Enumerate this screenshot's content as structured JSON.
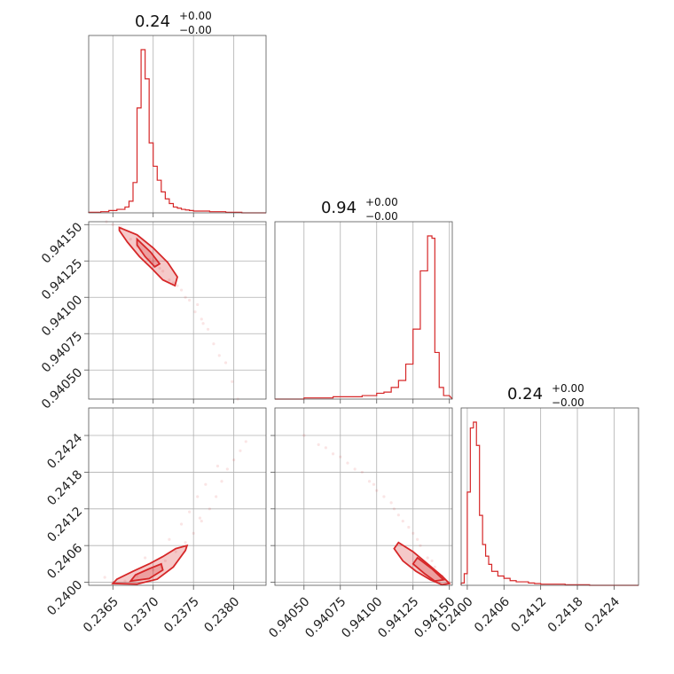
{
  "chart_data": {
    "type": "corner",
    "color": "#d62728",
    "panels": {
      "p1_hist": {
        "title": {
          "value": "0.24",
          "upper": "+0.00",
          "lower": "−0.00"
        },
        "xlim": [
          0.2362,
          0.2384
        ],
        "bins": [
          0.23635,
          0.23645,
          0.23655,
          0.23665,
          0.2367,
          0.23675,
          0.2368,
          0.23685,
          0.2369,
          0.23695,
          0.237,
          0.23705,
          0.2371,
          0.23715,
          0.2372,
          0.23725,
          0.2373,
          0.23735,
          0.2374,
          0.23745,
          0.2375,
          0.2376,
          0.2377,
          0.2378,
          0.2379,
          0.238,
          0.2381,
          0.2382
        ],
        "counts": [
          0.5,
          1,
          2,
          3,
          5,
          10,
          26,
          90,
          140,
          115,
          60,
          40,
          28,
          18,
          12,
          8,
          5,
          4,
          3,
          2.5,
          2,
          1.5,
          1.5,
          1,
          1,
          0.5,
          0.5,
          0
        ]
      },
      "p2_hist": {
        "title": {
          "value": "0.94",
          "upper": "+0.00",
          "lower": "−0.00"
        },
        "xlim": [
          0.9403,
          0.94152
        ],
        "bins": [
          0.9405,
          0.9406,
          0.9407,
          0.9408,
          0.9409,
          0.941,
          0.94105,
          0.9411,
          0.94115,
          0.9412,
          0.94125,
          0.9413,
          0.94135,
          0.94138,
          0.9414,
          0.94143,
          0.94146,
          0.9415
        ],
        "counts": [
          0,
          1,
          1,
          2,
          2,
          3,
          5,
          6,
          10,
          16,
          30,
          60,
          110,
          140,
          138,
          40,
          10,
          3
        ]
      },
      "p3_hist": {
        "title": {
          "value": "0.24",
          "upper": "+0.00",
          "lower": "−0.00"
        },
        "xlim": [
          0.2399,
          0.2428
        ],
        "bins": [
          0.23995,
          0.24,
          0.24005,
          0.2401,
          0.24015,
          0.2402,
          0.24025,
          0.2403,
          0.24035,
          0.2404,
          0.2405,
          0.2406,
          0.2407,
          0.2408,
          0.2409,
          0.241,
          0.2411,
          0.2412,
          0.2414,
          0.2416,
          0.2418,
          0.242,
          0.2422
        ],
        "counts": [
          2,
          10,
          80,
          135,
          140,
          120,
          60,
          35,
          25,
          18,
          12,
          8,
          6,
          4,
          3,
          3,
          2,
          1.5,
          1,
          1,
          0.5,
          0.5,
          0
        ]
      },
      "p21_scatter": {
        "xlim": [
          0.2362,
          0.2384
        ],
        "ylim": [
          0.9403,
          0.94152
        ],
        "points": [
          [
            0.2365,
            0.9415
          ],
          [
            0.2366,
            0.94148
          ],
          [
            0.23672,
            0.9414
          ],
          [
            0.23685,
            0.94132
          ],
          [
            0.237,
            0.94125
          ],
          [
            0.23712,
            0.94118
          ],
          [
            0.23725,
            0.9411
          ],
          [
            0.23735,
            0.94105
          ],
          [
            0.23745,
            0.94098
          ],
          [
            0.23752,
            0.9409
          ],
          [
            0.2376,
            0.94085
          ],
          [
            0.23768,
            0.94078
          ],
          [
            0.23775,
            0.94068
          ],
          [
            0.23782,
            0.9406
          ],
          [
            0.2379,
            0.94055
          ],
          [
            0.23798,
            0.94042
          ],
          [
            0.23805,
            0.9403
          ],
          [
            0.2372,
            0.94112
          ],
          [
            0.2374,
            0.941
          ],
          [
            0.23695,
            0.94126
          ],
          [
            0.2368,
            0.94135
          ],
          [
            0.2373,
            0.94108
          ],
          [
            0.23755,
            0.94095
          ],
          [
            0.23642,
            0.94152
          ],
          [
            0.23708,
            0.9412
          ],
          [
            0.23762,
            0.94082
          ]
        ],
        "contours": {
          "outer": [
            [
              0.23658,
              0.94148
            ],
            [
              0.2368,
              0.94143
            ],
            [
              0.237,
              0.94134
            ],
            [
              0.23718,
              0.94124
            ],
            [
              0.2373,
              0.94114
            ],
            [
              0.23727,
              0.94108
            ],
            [
              0.23712,
              0.94112
            ],
            [
              0.23698,
              0.9412
            ],
            [
              0.23683,
              0.94128
            ],
            [
              0.23668,
              0.94138
            ],
            [
              0.23658,
              0.94146
            ]
          ],
          "inner": [
            [
              0.2368,
              0.9414
            ],
            [
              0.23697,
              0.94131
            ],
            [
              0.23708,
              0.94123
            ],
            [
              0.23702,
              0.94121
            ],
            [
              0.2369,
              0.94128
            ],
            [
              0.2368,
              0.94136
            ]
          ]
        }
      },
      "p31_scatter": {
        "xlim": [
          0.2362,
          0.2384
        ],
        "ylim": [
          0.23995,
          0.24285
        ],
        "points": [
          [
            0.2365,
            0.24
          ],
          [
            0.23665,
            0.24002
          ],
          [
            0.2368,
            0.2401
          ],
          [
            0.237,
            0.2402
          ],
          [
            0.23715,
            0.24035
          ],
          [
            0.23728,
            0.2405
          ],
          [
            0.2374,
            0.24065
          ],
          [
            0.2375,
            0.2408
          ],
          [
            0.2376,
            0.241
          ],
          [
            0.2377,
            0.2412
          ],
          [
            0.23778,
            0.2414
          ],
          [
            0.23785,
            0.24165
          ],
          [
            0.23792,
            0.24185
          ],
          [
            0.238,
            0.242
          ],
          [
            0.23808,
            0.24215
          ],
          [
            0.23815,
            0.2423
          ],
          [
            0.23735,
            0.24095
          ],
          [
            0.23755,
            0.2414
          ],
          [
            0.2369,
            0.2404
          ],
          [
            0.23765,
            0.2416
          ],
          [
            0.2372,
            0.2407
          ],
          [
            0.2364,
            0.24008
          ],
          [
            0.23745,
            0.24115
          ],
          [
            0.2378,
            0.2419
          ],
          [
            0.2371,
            0.24025
          ],
          [
            0.23758,
            0.24105
          ]
        ],
        "contours": {
          "outer": [
            [
              0.2365,
              0.23998
            ],
            [
              0.2368,
              0.23997
            ],
            [
              0.23705,
              0.24005
            ],
            [
              0.23725,
              0.24025
            ],
            [
              0.2374,
              0.24052
            ],
            [
              0.23742,
              0.2406
            ],
            [
              0.23728,
              0.24055
            ],
            [
              0.23712,
              0.24042
            ],
            [
              0.23695,
              0.2403
            ],
            [
              0.23675,
              0.24018
            ],
            [
              0.23655,
              0.24005
            ]
          ],
          "inner": [
            [
              0.23672,
              0.24002
            ],
            [
              0.23695,
              0.24006
            ],
            [
              0.23712,
              0.2402
            ],
            [
              0.2371,
              0.2403
            ],
            [
              0.23695,
              0.24022
            ],
            [
              0.23678,
              0.24012
            ]
          ]
        }
      },
      "p32_scatter": {
        "xlim": [
          0.9403,
          0.94152
        ],
        "ylim": [
          0.23995,
          0.24285
        ],
        "points": [
          [
            0.9405,
            0.2424
          ],
          [
            0.9406,
            0.24225
          ],
          [
            0.9407,
            0.2421
          ],
          [
            0.9408,
            0.24195
          ],
          [
            0.9409,
            0.2418
          ],
          [
            0.94098,
            0.2416
          ],
          [
            0.94105,
            0.2414
          ],
          [
            0.94112,
            0.2412
          ],
          [
            0.94118,
            0.241
          ],
          [
            0.94125,
            0.2408
          ],
          [
            0.9413,
            0.2406
          ],
          [
            0.94135,
            0.2404
          ],
          [
            0.9414,
            0.24025
          ],
          [
            0.94145,
            0.2401
          ],
          [
            0.9415,
            0.24
          ],
          [
            0.941,
            0.2415
          ],
          [
            0.9411,
            0.2413
          ],
          [
            0.94122,
            0.2409
          ],
          [
            0.94085,
            0.24185
          ],
          [
            0.94128,
            0.2407
          ],
          [
            0.94065,
            0.2422
          ],
          [
            0.94138,
            0.24035
          ],
          [
            0.94095,
            0.24165
          ],
          [
            0.94115,
            0.2411
          ],
          [
            0.94142,
            0.24015
          ],
          [
            0.94075,
            0.24205
          ]
        ],
        "contours": {
          "outer": [
            [
              0.94115,
              0.24065
            ],
            [
              0.94125,
              0.2405
            ],
            [
              0.94135,
              0.2403
            ],
            [
              0.94145,
              0.2401
            ],
            [
              0.9415,
              0.23998
            ],
            [
              0.94145,
              0.23996
            ],
            [
              0.94137,
              0.24004
            ],
            [
              0.94127,
              0.24018
            ],
            [
              0.94118,
              0.24035
            ],
            [
              0.94112,
              0.24055
            ]
          ],
          "inner": [
            [
              0.94128,
              0.2404
            ],
            [
              0.94138,
              0.24022
            ],
            [
              0.94146,
              0.24004
            ],
            [
              0.9414,
              0.24002
            ],
            [
              0.94133,
              0.24014
            ],
            [
              0.94125,
              0.2403
            ]
          ]
        }
      }
    },
    "axes": {
      "x1": {
        "ticks": [
          0.2365,
          0.237,
          0.2375,
          0.238
        ],
        "labels": [
          "0.2365",
          "0.2370",
          "0.2375",
          "0.2380"
        ]
      },
      "x2": {
        "ticks": [
          0.9405,
          0.94075,
          0.941,
          0.94125,
          0.9415
        ],
        "labels": [
          "0.94050",
          "0.94075",
          "0.94100",
          "0.94125",
          "0.94150"
        ]
      },
      "x3": {
        "ticks": [
          0.24,
          0.2406,
          0.2412,
          0.2418,
          0.2424
        ],
        "labels": [
          "0.2400",
          "0.2406",
          "0.2412",
          "0.2418",
          "0.2424"
        ]
      },
      "y2": {
        "ticks": [
          0.9405,
          0.94075,
          0.941,
          0.94125,
          0.9415
        ],
        "labels": [
          "0.94050",
          "0.94075",
          "0.94100",
          "0.94125",
          "0.94150"
        ]
      },
      "y3": {
        "ticks": [
          0.24,
          0.2406,
          0.2412,
          0.2418,
          0.2424
        ],
        "labels": [
          "0.2400",
          "0.2406",
          "0.2412",
          "0.2418",
          "0.2424"
        ]
      }
    }
  }
}
